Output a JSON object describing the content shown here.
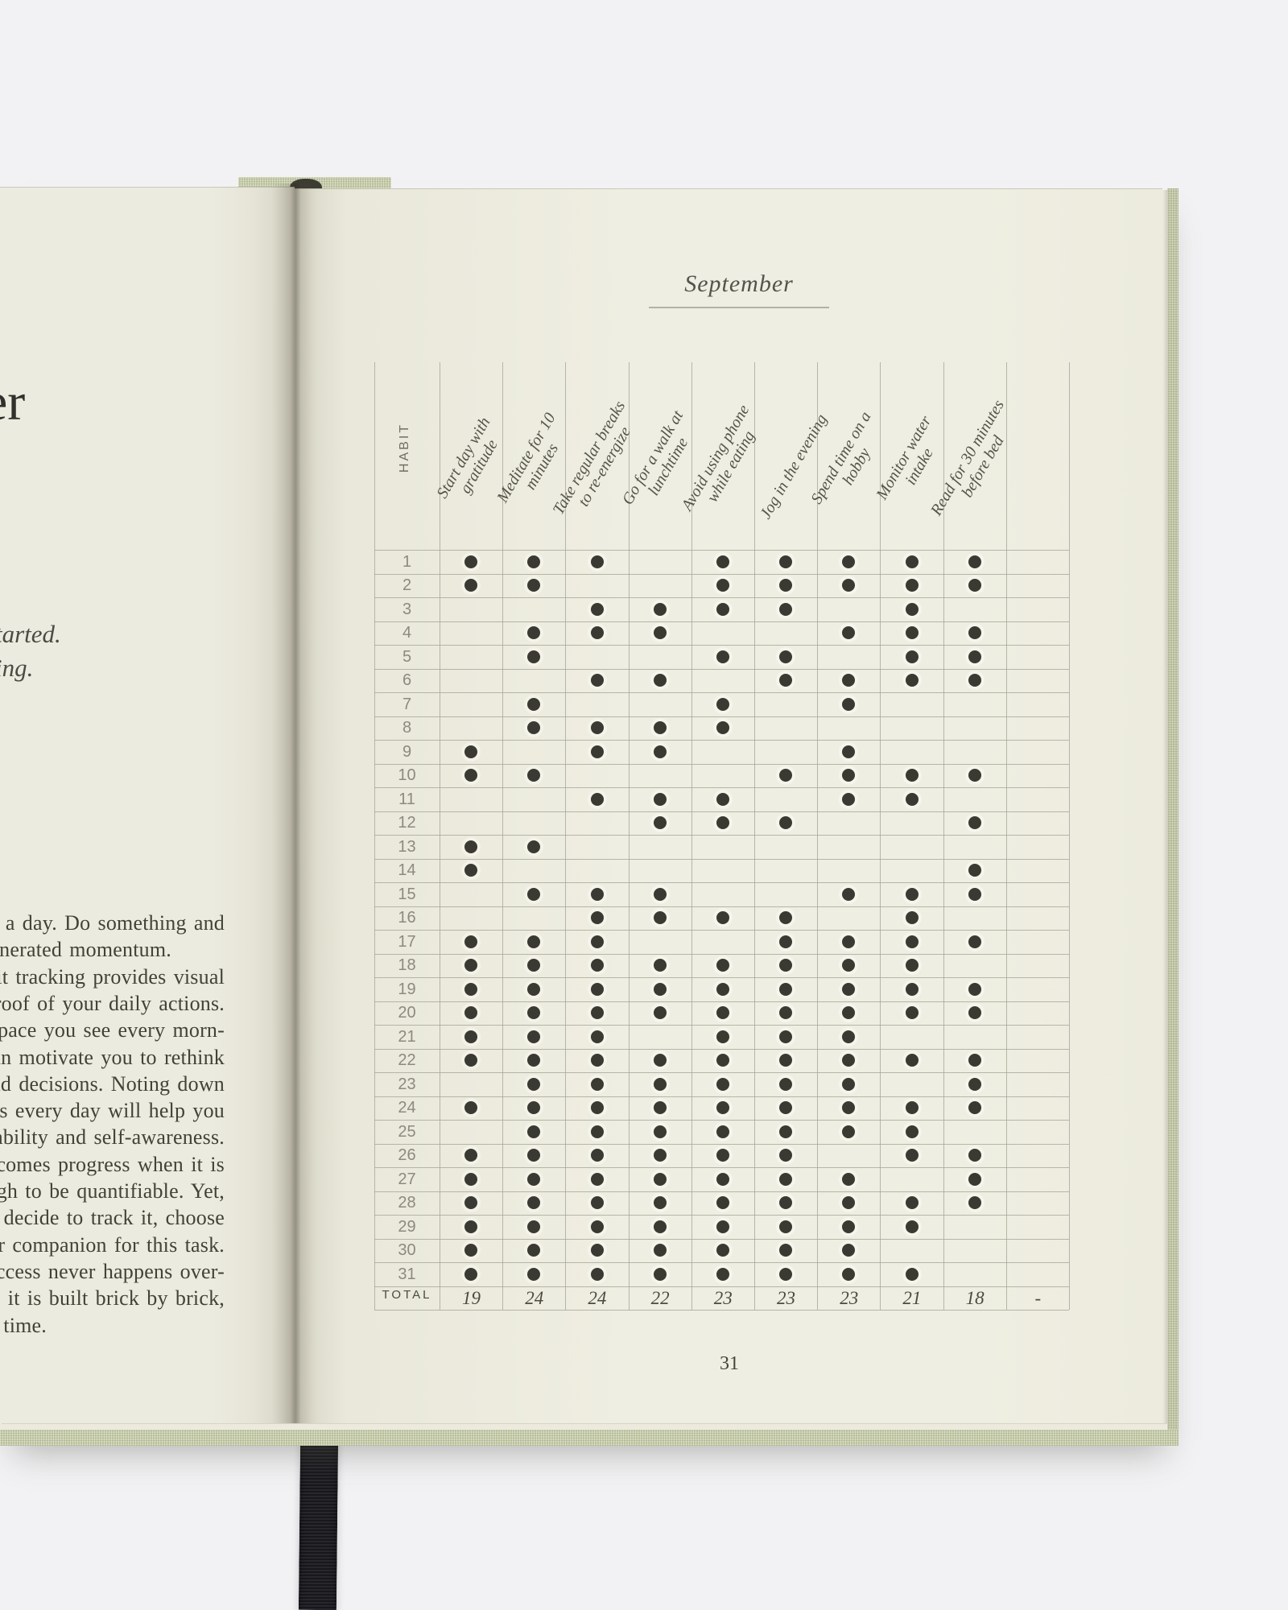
{
  "colors": {
    "background": "#f2f2f4",
    "page": "#efeee2",
    "cover_fabric": "#c6cba9",
    "ribbon": "#17171c",
    "ink_dot": "#3a3932",
    "grid_line": "#a6a69a",
    "handwriting": "#55544a"
  },
  "book": {
    "left_page": {
      "heading_fragment": "er",
      "fragment_1": "tarted.",
      "fragment_2": "ing.",
      "paragraph_lines": [
        "es a day. Do something and",
        "nerated momentum.",
        "abit tracking provides visual",
        "proof of your daily actions.",
        "y space you see every morn-",
        "can motivate you to rethink",
        "nd decisions. Noting down",
        "ges every day will help you",
        "ability and self-awareness.",
        "ecomes progress when it is",
        "gh to be quantifiable. Yet,",
        "decide to track it, choose",
        "ur companion for this task.",
        "success never happens over-",
        "d, it is built brick by brick,",
        "time."
      ]
    },
    "right_page": {
      "title": "September",
      "page_number": "31",
      "table": {
        "corner_label": "HABIT",
        "total_label": "TOTAL",
        "columns": [
          [
            "Start day with",
            "gratitude"
          ],
          [
            "Meditate for 10",
            "minutes"
          ],
          [
            "Take regular breaks",
            "to re-energize"
          ],
          [
            "Go for a walk at",
            "lunchtime"
          ],
          [
            "Avoid using phone",
            "while eating"
          ],
          [
            "Jog in the evening"
          ],
          [
            "Spend time on a",
            "hobby"
          ],
          [
            "Monitor water",
            "intake"
          ],
          [
            "Read for 30 minutes",
            "before bed"
          ],
          []
        ],
        "days": [
          {
            "day": "1",
            "dots": [
              1,
              1,
              1,
              0,
              1,
              1,
              1,
              1,
              1,
              0
            ]
          },
          {
            "day": "2",
            "dots": [
              1,
              1,
              0,
              0,
              1,
              1,
              1,
              1,
              1,
              0
            ]
          },
          {
            "day": "3",
            "dots": [
              0,
              0,
              1,
              1,
              1,
              1,
              0,
              1,
              0,
              0
            ]
          },
          {
            "day": "4",
            "dots": [
              0,
              1,
              1,
              1,
              0,
              0,
              1,
              1,
              1,
              0
            ]
          },
          {
            "day": "5",
            "dots": [
              0,
              1,
              0,
              0,
              1,
              1,
              0,
              1,
              1,
              0
            ]
          },
          {
            "day": "6",
            "dots": [
              0,
              0,
              1,
              1,
              0,
              1,
              1,
              1,
              1,
              0
            ]
          },
          {
            "day": "7",
            "dots": [
              0,
              1,
              0,
              0,
              1,
              0,
              1,
              0,
              0,
              0
            ]
          },
          {
            "day": "8",
            "dots": [
              0,
              1,
              1,
              1,
              1,
              0,
              0,
              0,
              0,
              0
            ]
          },
          {
            "day": "9",
            "dots": [
              1,
              0,
              1,
              1,
              0,
              0,
              1,
              0,
              0,
              0
            ]
          },
          {
            "day": "10",
            "dots": [
              1,
              1,
              0,
              0,
              0,
              1,
              1,
              1,
              1,
              0
            ]
          },
          {
            "day": "11",
            "dots": [
              0,
              0,
              1,
              1,
              1,
              0,
              1,
              1,
              0,
              0
            ]
          },
          {
            "day": "12",
            "dots": [
              0,
              0,
              0,
              1,
              1,
              1,
              0,
              0,
              1,
              0
            ]
          },
          {
            "day": "13",
            "dots": [
              1,
              1,
              0,
              0,
              0,
              0,
              0,
              0,
              0,
              0
            ]
          },
          {
            "day": "14",
            "dots": [
              1,
              0,
              0,
              0,
              0,
              0,
              0,
              0,
              1,
              0
            ]
          },
          {
            "day": "15",
            "dots": [
              0,
              1,
              1,
              1,
              0,
              0,
              1,
              1,
              1,
              0
            ]
          },
          {
            "day": "16",
            "dots": [
              0,
              0,
              1,
              1,
              1,
              1,
              0,
              1,
              0,
              0
            ]
          },
          {
            "day": "17",
            "dots": [
              1,
              1,
              1,
              0,
              0,
              1,
              1,
              1,
              1,
              0
            ]
          },
          {
            "day": "18",
            "dots": [
              1,
              1,
              1,
              1,
              1,
              1,
              1,
              1,
              0,
              0
            ]
          },
          {
            "day": "19",
            "dots": [
              1,
              1,
              1,
              1,
              1,
              1,
              1,
              1,
              1,
              0
            ]
          },
          {
            "day": "20",
            "dots": [
              1,
              1,
              1,
              1,
              1,
              1,
              1,
              1,
              1,
              0
            ]
          },
          {
            "day": "21",
            "dots": [
              1,
              1,
              1,
              0,
              1,
              1,
              1,
              0,
              0,
              0
            ]
          },
          {
            "day": "22",
            "dots": [
              1,
              1,
              1,
              1,
              1,
              1,
              1,
              1,
              1,
              0
            ]
          },
          {
            "day": "23",
            "dots": [
              0,
              1,
              1,
              1,
              1,
              1,
              1,
              0,
              1,
              0
            ]
          },
          {
            "day": "24",
            "dots": [
              1,
              1,
              1,
              1,
              1,
              1,
              1,
              1,
              1,
              0
            ]
          },
          {
            "day": "25",
            "dots": [
              0,
              1,
              1,
              1,
              1,
              1,
              1,
              1,
              0,
              0
            ]
          },
          {
            "day": "26",
            "dots": [
              1,
              1,
              1,
              1,
              1,
              1,
              0,
              1,
              1,
              0
            ]
          },
          {
            "day": "27",
            "dots": [
              1,
              1,
              1,
              1,
              1,
              1,
              1,
              0,
              1,
              0
            ]
          },
          {
            "day": "28",
            "dots": [
              1,
              1,
              1,
              1,
              1,
              1,
              1,
              1,
              1,
              0
            ]
          },
          {
            "day": "29",
            "dots": [
              1,
              1,
              1,
              1,
              1,
              1,
              1,
              1,
              0,
              0
            ]
          },
          {
            "day": "30",
            "dots": [
              1,
              1,
              1,
              1,
              1,
              1,
              1,
              0,
              0,
              0
            ]
          },
          {
            "day": "31",
            "dots": [
              1,
              1,
              1,
              1,
              1,
              1,
              1,
              1,
              0,
              0
            ]
          }
        ],
        "totals": [
          "19",
          "24",
          "24",
          "22",
          "23",
          "23",
          "23",
          "21",
          "18",
          "-"
        ]
      }
    }
  }
}
